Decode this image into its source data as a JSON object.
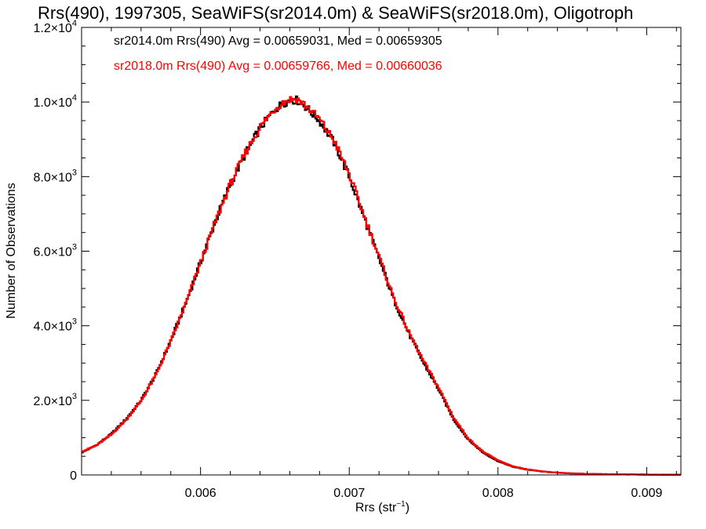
{
  "chart_data": {
    "type": "line",
    "title": "Rrs(490), 1997305, SeaWiFS(sr2014.0m) & SeaWiFS(sr2018.0m), Oligotroph",
    "xlabel": "Rrs (str",
    "xlabel_sup": "−1",
    "xlabel_close": ")",
    "ylabel": "Number of Observations",
    "xlim": [
      0.0052,
      0.00923
    ],
    "ylim": [
      0,
      12000
    ],
    "x_ticks": [
      0.006,
      0.007,
      0.008,
      0.009
    ],
    "x_tick_labels": [
      "0.006",
      "0.007",
      "0.008",
      "0.009"
    ],
    "y_ticks": [
      0,
      2000,
      4000,
      6000,
      8000,
      10000,
      12000
    ],
    "y_tick_labels": [
      {
        "mant": "0",
        "exp": ""
      },
      {
        "mant": "2.0×10",
        "exp": "3"
      },
      {
        "mant": "4.0×10",
        "exp": "3"
      },
      {
        "mant": "6.0×10",
        "exp": "3"
      },
      {
        "mant": "8.0×10",
        "exp": "3"
      },
      {
        "mant": "1.0×10",
        "exp": "4"
      },
      {
        "mant": "1.2×10",
        "exp": "4"
      }
    ],
    "grid": false,
    "legend_placement": "top-left",
    "series": [
      {
        "name": "sr2014.0m Rrs(490) Avg = 0.00659031, Med = 0.00659305",
        "color": "#000000",
        "x": [
          0.0052,
          0.0053,
          0.0054,
          0.0055,
          0.0056,
          0.0057,
          0.0058,
          0.0059,
          0.006,
          0.0061,
          0.0062,
          0.0063,
          0.0064,
          0.0065,
          0.00655,
          0.0066,
          0.00665,
          0.0067,
          0.0068,
          0.0069,
          0.007,
          0.0071,
          0.0072,
          0.0073,
          0.0074,
          0.0075,
          0.0076,
          0.0077,
          0.0078,
          0.0079,
          0.008,
          0.0081,
          0.0082,
          0.0083,
          0.0084,
          0.0085,
          0.0086,
          0.0088,
          0.009,
          0.00923
        ],
        "y": [
          600,
          800,
          1100,
          1500,
          2000,
          2700,
          3600,
          4600,
          5700,
          6800,
          7800,
          8600,
          9300,
          9800,
          9950,
          10050,
          10050,
          9900,
          9500,
          8900,
          8000,
          6900,
          5800,
          4700,
          3800,
          3000,
          2300,
          1500,
          950,
          600,
          370,
          220,
          140,
          90,
          60,
          40,
          25,
          15,
          8,
          5
        ]
      },
      {
        "name": "sr2018.0m Rrs(490) Avg = 0.00659766, Med = 0.00660036",
        "color": "#ff0000",
        "x": [
          0.0052,
          0.0053,
          0.0054,
          0.0055,
          0.0056,
          0.0057,
          0.0058,
          0.0059,
          0.006,
          0.0061,
          0.0062,
          0.0063,
          0.0064,
          0.0065,
          0.00655,
          0.0066,
          0.00665,
          0.0067,
          0.0068,
          0.0069,
          0.007,
          0.0071,
          0.0072,
          0.0073,
          0.0074,
          0.0075,
          0.0076,
          0.0077,
          0.0078,
          0.0079,
          0.008,
          0.0081,
          0.0082,
          0.0083,
          0.0084,
          0.0085,
          0.0086,
          0.0088,
          0.009,
          0.00923
        ],
        "y": [
          620,
          790,
          1080,
          1480,
          1980,
          2680,
          3580,
          4580,
          5690,
          6790,
          7790,
          8620,
          9320,
          9820,
          9980,
          10070,
          10080,
          9930,
          9540,
          8950,
          8060,
          6950,
          5850,
          4750,
          3830,
          3050,
          2350,
          1550,
          980,
          620,
          390,
          230,
          145,
          95,
          62,
          42,
          26,
          16,
          9,
          6
        ]
      }
    ]
  }
}
